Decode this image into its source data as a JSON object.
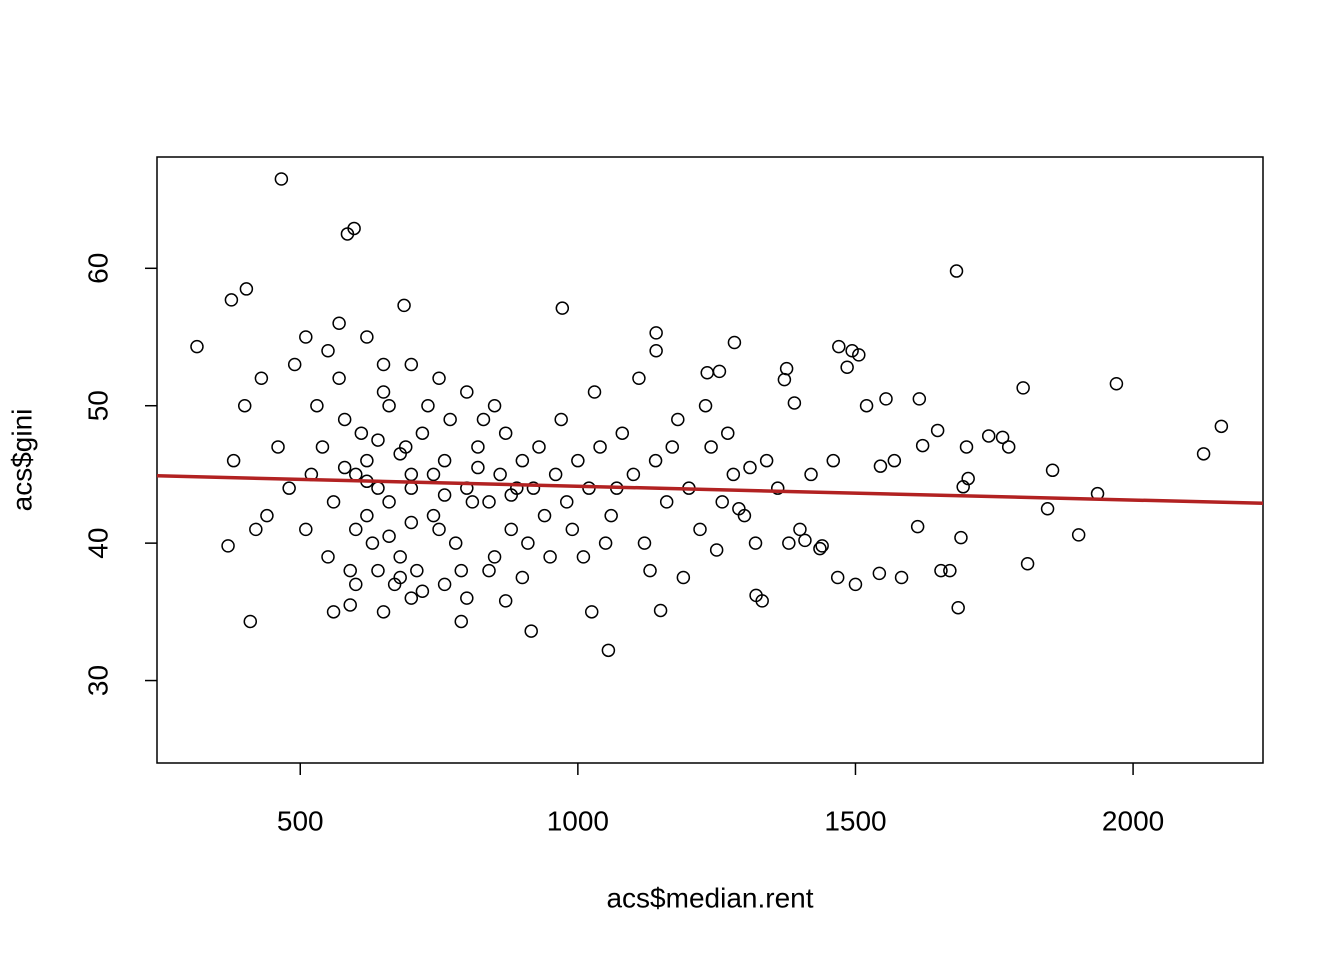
{
  "chart_data": {
    "type": "scatter",
    "x_label": "acs$median.rent",
    "y_label": "acs$gini",
    "xlim": [
      242,
      2234
    ],
    "ylim": [
      24,
      68.1
    ],
    "xticks": [
      500,
      1000,
      1500,
      2000
    ],
    "yticks": [
      30,
      40,
      50,
      60
    ],
    "color": "#000000",
    "x": [
      520,
      540,
      560,
      580,
      600,
      620,
      640,
      660,
      680,
      700,
      720,
      740,
      760,
      780,
      800,
      820,
      840,
      860,
      880,
      900,
      920,
      940,
      960,
      980,
      1000,
      510,
      530,
      550,
      570,
      590,
      610,
      630,
      650,
      670,
      690,
      710,
      730,
      750,
      770,
      790,
      810,
      830,
      850,
      870,
      890,
      910,
      930,
      950,
      970,
      990,
      480,
      460,
      440,
      420,
      400,
      380,
      370,
      430,
      490,
      510,
      550,
      570,
      620,
      650,
      700,
      750,
      800,
      850,
      600,
      640,
      680,
      720,
      760,
      800,
      840,
      870,
      900,
      560,
      590,
      650,
      700,
      1020,
      1040,
      1060,
      1080,
      1100,
      1120,
      1140,
      1160,
      1180,
      1200,
      1220,
      1240,
      1260,
      1280,
      1300,
      1320,
      1340,
      1360,
      1380,
      1400,
      1420,
      1440,
      1460,
      1010,
      1030,
      1050,
      1070,
      1110,
      1130,
      1170,
      1190,
      1230,
      1250,
      1270,
      1290,
      1310,
      620,
      660,
      680,
      700,
      640,
      600,
      700,
      660,
      740,
      620,
      580,
      760,
      820,
      880,
      466,
      585,
      597,
      1682,
      314,
      403,
      376,
      687,
      972,
      2159,
      2127,
      1970,
      1802,
      1902,
      1810,
      1846,
      1855,
      1936,
      1055,
      410,
      916,
      790,
      1615,
      1685,
      1654,
      1670,
      1690,
      1694,
      1703,
      1700,
      1740,
      1765,
      1776,
      1543,
      1583,
      1612,
      1621,
      1648,
      1555,
      1520,
      1470,
      1494,
      1506,
      1485,
      1570,
      1545,
      1372,
      1390,
      1376,
      1233,
      1255,
      1282,
      1141,
      1141,
      1321,
      1332,
      1149,
      1025,
      1468,
      1500,
      1409,
      1436
    ],
    "values": [
      45,
      47,
      43,
      49,
      41,
      46,
      44,
      50,
      39,
      45,
      48,
      42,
      46,
      40,
      44,
      47,
      43,
      45,
      41,
      46,
      44,
      42,
      45,
      43,
      46,
      41,
      50,
      39,
      52,
      38,
      48,
      40,
      51,
      37,
      47,
      38,
      50,
      41,
      49,
      38,
      43,
      49,
      39,
      48,
      44,
      40,
      47,
      39,
      49,
      41,
      44,
      47,
      42,
      41,
      50,
      46,
      39.8,
      52,
      53,
      55,
      54,
      56,
      55,
      53,
      53,
      52,
      51,
      50,
      37,
      38,
      37.5,
      36.5,
      37,
      36,
      38,
      35.8,
      37.5,
      35,
      35.5,
      35,
      36,
      44,
      47,
      42,
      48,
      45,
      40,
      46,
      43,
      49,
      44,
      41,
      47,
      43,
      45,
      42,
      40,
      46,
      44,
      40,
      41,
      45,
      39.8,
      46,
      39,
      51,
      40,
      44,
      52,
      38,
      47,
      37.5,
      50,
      39.5,
      48,
      42.5,
      45.5,
      44.5,
      43,
      46.5,
      41.5,
      47.5,
      45,
      44,
      40.5,
      45,
      42,
      45.5,
      43.5,
      45.5,
      43.5,
      66.5,
      62.5,
      62.9,
      59.8,
      54.3,
      58.5,
      57.7,
      57.3,
      57.1,
      48.5,
      46.5,
      51.6,
      51.3,
      40.6,
      38.5,
      42.5,
      45.3,
      43.6,
      32.2,
      34.3,
      33.6,
      34.3,
      50.5,
      35.3,
      38,
      38,
      40.4,
      44.1,
      44.7,
      47,
      47.8,
      47.7,
      47,
      37.8,
      37.5,
      41.2,
      47.1,
      48.2,
      50.5,
      50,
      54.3,
      54,
      53.7,
      52.8,
      46,
      45.6,
      51.9,
      50.2,
      52.7,
      52.4,
      52.5,
      54.6,
      54,
      55.3,
      36.2,
      35.8,
      35.1,
      35,
      37.5,
      37,
      40.2,
      39.6
    ],
    "trend_line": {
      "x": [
        242,
        2234
      ],
      "values": [
        44.9,
        42.9
      ],
      "color": "#b22222"
    }
  }
}
